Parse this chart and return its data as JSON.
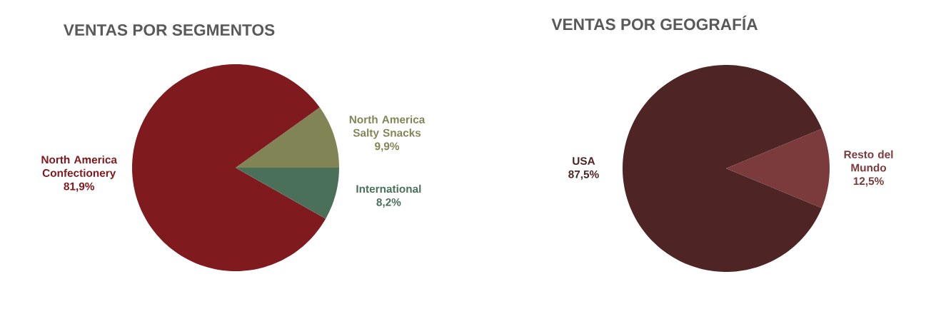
{
  "chart_data": [
    {
      "type": "pie",
      "title": "VENTAS POR SEGMENTOS",
      "categories": [
        "North America Salty Snacks",
        "North America Confectionery",
        "International"
      ],
      "values": [
        9.9,
        81.9,
        8.2
      ],
      "colors": [
        "#818555",
        "#7f1a1e",
        "#4a705a"
      ],
      "value_labels": [
        "9,9%",
        "81,9%",
        "8,2%"
      ]
    },
    {
      "type": "pie",
      "title": "VENTAS POR GEOGRAFÍA",
      "categories": [
        "Resto del Mundo",
        "USA"
      ],
      "values": [
        12.5,
        87.5
      ],
      "colors": [
        "#7b3b3c",
        "#4e2425"
      ],
      "value_labels": [
        "12,5%",
        "87,5%"
      ]
    }
  ]
}
